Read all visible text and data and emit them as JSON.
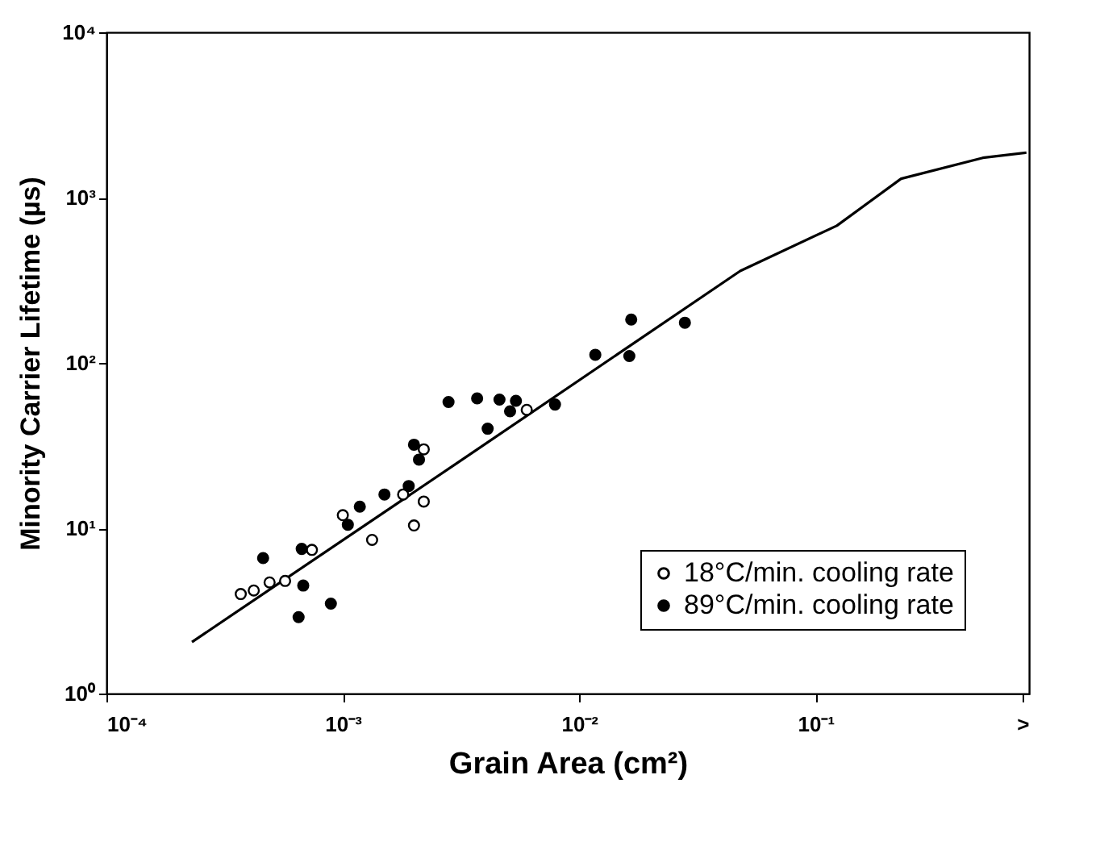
{
  "chart_data": {
    "type": "scatter",
    "xlabel": "Grain Area (cm²)",
    "ylabel": "Minority Carrier Lifetime (µs)",
    "log": "xy",
    "xlim": [
      0.0001,
      0.8
    ],
    "xticks": [
      {
        "value": 0.0001,
        "label": "10⁻⁴"
      },
      {
        "value": 0.001,
        "label": "10⁻³"
      },
      {
        "value": 0.01,
        "label": "10⁻²"
      },
      {
        "value": 0.1,
        "label": "10⁻¹"
      },
      {
        "value": 0.75,
        "label": ">"
      }
    ],
    "ylim": [
      1,
      10000
    ],
    "yticks": [
      {
        "value": 1,
        "label": "10⁰"
      },
      {
        "value": 10,
        "label": "10¹"
      },
      {
        "value": 100,
        "label": "10²"
      },
      {
        "value": 1000,
        "label": "10³"
      },
      {
        "value": 10000,
        "label": "10⁴"
      }
    ],
    "grid": false,
    "legend": "bottom right",
    "marker": "circle",
    "series": [
      {
        "type": "line",
        "marker": "none",
        "color": "#000000",
        "x": [
          0.00023,
          0.0032,
          0.048,
          0.123,
          0.23,
          0.51,
          0.78
        ],
        "values": [
          2.05,
          26,
          360,
          676,
          1300,
          1740,
          1870
        ]
      },
      {
        "name": "18°C/min. cooling rate",
        "color": "#000000",
        "x": [
          0.00037,
          0.00042,
          0.00049,
          0.00057,
          0.00074,
          0.001,
          0.00133,
          0.0018,
          0.002,
          0.0022,
          0.0022,
          0.006
        ],
        "values": [
          4.0,
          4.2,
          4.7,
          4.8,
          7.4,
          12,
          8.5,
          16,
          10.4,
          14.5,
          30,
          52
        ]
      },
      {
        "name": "89°C/min. cooling rate",
        "color": "#000000",
        "x": [
          0.00065,
          0.00089,
          0.00068,
          0.00046,
          0.00067,
          0.00118,
          0.00105,
          0.0015,
          0.0019,
          0.0021,
          0.002,
          0.0028,
          0.0037,
          0.0046,
          0.0054,
          0.0051,
          0.0041,
          0.0079,
          0.0117,
          0.0166,
          0.0163,
          0.028
        ],
        "values": [
          2.9,
          3.5,
          4.5,
          6.6,
          7.5,
          13.5,
          10.5,
          16,
          18,
          26,
          32,
          58,
          61,
          60,
          59,
          51,
          40,
          56,
          112,
          183,
          110,
          175
        ]
      }
    ]
  }
}
